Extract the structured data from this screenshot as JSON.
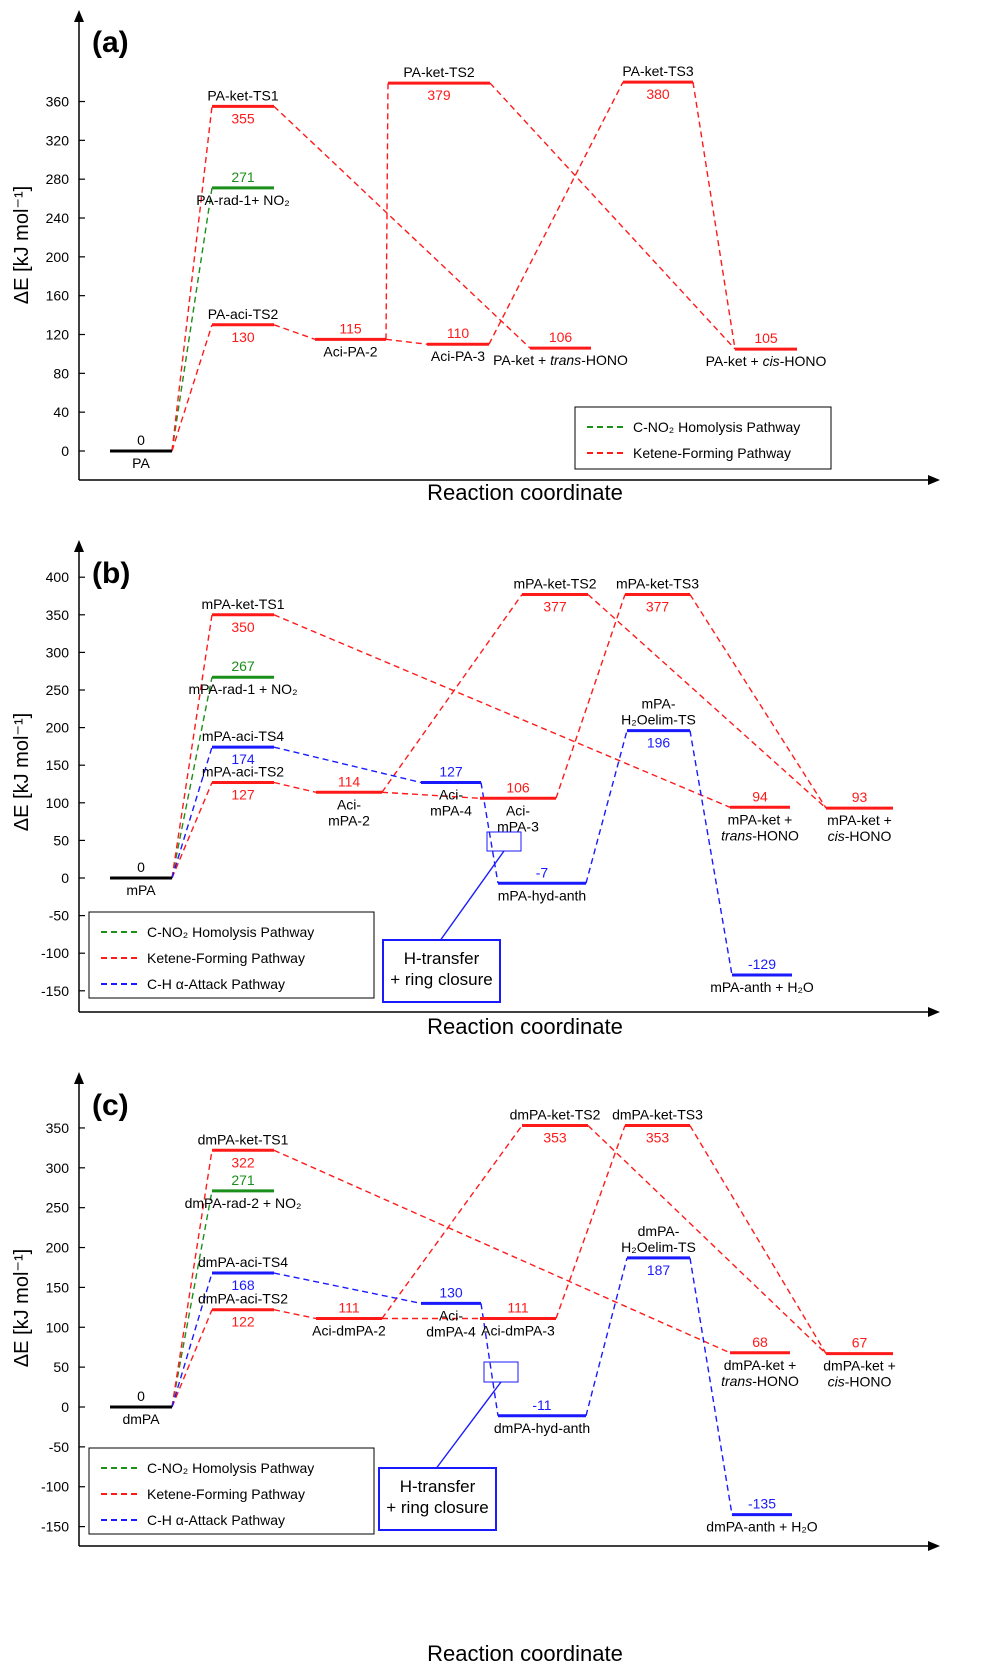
{
  "colors": {
    "black": "#000000",
    "green": "#1a8f1a",
    "red": "#ff1a1a",
    "blue": "#1a1aff"
  },
  "chart_data": [
    {
      "id": "a",
      "type": "energy-profile",
      "panel_label": "(a)",
      "ylabel": "ΔE [kJ mol⁻¹]",
      "xlabel": "Reaction coordinate",
      "yticks": [
        0,
        40,
        80,
        120,
        160,
        200,
        240,
        280,
        320,
        360
      ],
      "ylim": [
        -10,
        410
      ],
      "legend": [
        {
          "label": "C-NO₂ Homolysis Pathway",
          "color": "green"
        },
        {
          "label": "Ketene-Forming Pathway",
          "color": "red"
        }
      ],
      "levels": [
        {
          "id": "PA",
          "value": 0,
          "value_label": "0",
          "name": "PA",
          "color": "black"
        },
        {
          "id": "rad",
          "value": 271,
          "value_label": "271",
          "name": "PA-rad-1+ NO₂",
          "color": "green"
        },
        {
          "id": "ts1",
          "value": 355,
          "value_label": "355",
          "name": "PA-ket-TS1",
          "color": "red"
        },
        {
          "id": "aciTS2",
          "value": 130,
          "value_label": "130",
          "name": "PA-aci-TS2",
          "color": "red"
        },
        {
          "id": "aci2",
          "value": 115,
          "value_label": "115",
          "name": "Aci-PA-2",
          "color": "red"
        },
        {
          "id": "aci3",
          "value": 110,
          "value_label": "110",
          "name": "Aci-PA-3",
          "color": "red"
        },
        {
          "id": "ts2",
          "value": 379,
          "value_label": "379",
          "name": "PA-ket-TS2",
          "color": "red"
        },
        {
          "id": "ketT",
          "value": 106,
          "value_label": "106",
          "name": "PA-ket + trans-HONO",
          "color": "red"
        },
        {
          "id": "ts3",
          "value": 380,
          "value_label": "380",
          "name": "PA-ket-TS3",
          "color": "red"
        },
        {
          "id": "ketC",
          "value": 105,
          "value_label": "105",
          "name": "PA-ket + cis-HONO",
          "color": "red"
        }
      ],
      "connections": [
        {
          "from": "PA",
          "to": "rad",
          "color": "green"
        },
        {
          "from": "PA",
          "to": "ts1",
          "color": "red"
        },
        {
          "from": "PA",
          "to": "aciTS2",
          "color": "red"
        },
        {
          "from": "ts1",
          "to": "ketT",
          "color": "red"
        },
        {
          "from": "aciTS2",
          "to": "aci2",
          "color": "red"
        },
        {
          "from": "aci2",
          "to": "aci3",
          "color": "red"
        },
        {
          "from": "aci2",
          "to": "ts2",
          "color": "red"
        },
        {
          "from": "ts2",
          "to": "ketC",
          "color": "red"
        },
        {
          "from": "aci3",
          "to": "ts3",
          "color": "red"
        },
        {
          "from": "ts3",
          "to": "ketC",
          "color": "red"
        }
      ]
    },
    {
      "id": "b",
      "type": "energy-profile",
      "panel_label": "(b)",
      "ylabel": "ΔE [kJ mol⁻¹]",
      "xlabel": "Reaction coordinate",
      "yticks": [
        -150,
        -100,
        -50,
        0,
        50,
        100,
        150,
        200,
        250,
        300,
        350,
        400
      ],
      "ylim": [
        -170,
        430
      ],
      "legend": [
        {
          "label": "C-NO₂ Homolysis Pathway",
          "color": "green"
        },
        {
          "label": "Ketene-Forming Pathway",
          "color": "red"
        },
        {
          "label": "C-H α-Attack Pathway",
          "color": "blue"
        }
      ],
      "callout": "H-transfer\n+ ring closure",
      "levels": [
        {
          "id": "PA",
          "value": 0,
          "value_label": "0",
          "name": "mPA",
          "color": "black"
        },
        {
          "id": "ts1",
          "value": 350,
          "value_label": "350",
          "name": "mPA-ket-TS1",
          "color": "red"
        },
        {
          "id": "rad",
          "value": 267,
          "value_label": "267",
          "name": "mPA-rad-1 + NO₂",
          "color": "green"
        },
        {
          "id": "aciTS4",
          "value": 174,
          "value_label": "174",
          "name": "mPA-aci-TS4",
          "color": "blue"
        },
        {
          "id": "aciTS2",
          "value": 127,
          "value_label": "127",
          "name": "mPA-aci-TS2",
          "color": "red"
        },
        {
          "id": "aci2",
          "value": 114,
          "value_label": "114",
          "name": "Aci-\nmPA-2",
          "color": "red"
        },
        {
          "id": "aci4",
          "value": 127,
          "value_label": "127",
          "name": "Aci-\nmPA-4",
          "color": "blue"
        },
        {
          "id": "aci3",
          "value": 106,
          "value_label": "106",
          "name": "Aci-\nmPA-3",
          "color": "red"
        },
        {
          "id": "ts2",
          "value": 377,
          "value_label": "377",
          "name": "mPA-ket-TS2",
          "color": "red"
        },
        {
          "id": "hyd",
          "value": -7,
          "value_label": "-7",
          "name": "mPA-hyd-anth",
          "color": "blue"
        },
        {
          "id": "ts3",
          "value": 377,
          "value_label": "377",
          "name": "mPA-ket-TS3",
          "color": "red"
        },
        {
          "id": "h2o",
          "value": 196,
          "value_label": "196",
          "name": "mPA-\nH₂Oelim-TS",
          "color": "blue"
        },
        {
          "id": "ketT",
          "value": 94,
          "value_label": "94",
          "name": "mPA-ket +\ntrans-HONO",
          "color": "red"
        },
        {
          "id": "anth",
          "value": -129,
          "value_label": "-129",
          "name": "mPA-anth + H₂O",
          "color": "blue"
        },
        {
          "id": "ketC",
          "value": 93,
          "value_label": "93",
          "name": "mPA-ket +\ncis-HONO",
          "color": "red"
        }
      ],
      "connections": [
        {
          "from": "PA",
          "to": "rad",
          "color": "green"
        },
        {
          "from": "PA",
          "to": "ts1",
          "color": "red"
        },
        {
          "from": "PA",
          "to": "aciTS2",
          "color": "red"
        },
        {
          "from": "PA",
          "to": "aciTS4",
          "color": "blue"
        },
        {
          "from": "ts1",
          "to": "ketT",
          "color": "red"
        },
        {
          "from": "aciTS2",
          "to": "aci2",
          "color": "red"
        },
        {
          "from": "aci2",
          "to": "aci3",
          "color": "red"
        },
        {
          "from": "aci2",
          "to": "ts2",
          "color": "red"
        },
        {
          "from": "ts2",
          "to": "ketC",
          "color": "red"
        },
        {
          "from": "aci3",
          "to": "ts3",
          "color": "red"
        },
        {
          "from": "ts3",
          "to": "ketC",
          "color": "red"
        },
        {
          "from": "aciTS4",
          "to": "aci4",
          "color": "blue"
        },
        {
          "from": "aci4",
          "to": "hyd",
          "color": "blue"
        },
        {
          "from": "hyd",
          "to": "h2o",
          "color": "blue"
        },
        {
          "from": "h2o",
          "to": "anth",
          "color": "blue"
        }
      ]
    },
    {
      "id": "c",
      "type": "energy-profile",
      "panel_label": "(c)",
      "ylabel": "ΔE [kJ mol⁻¹]",
      "xlabel": "Reaction coordinate",
      "yticks": [
        -150,
        -100,
        -50,
        0,
        50,
        100,
        150,
        200,
        250,
        300,
        350
      ],
      "ylim": [
        -170,
        390
      ],
      "legend": [
        {
          "label": "C-NO₂ Homolysis Pathway",
          "color": "green"
        },
        {
          "label": "Ketene-Forming Pathway",
          "color": "red"
        },
        {
          "label": "C-H α-Attack Pathway",
          "color": "blue"
        }
      ],
      "callout": "H-transfer\n+ ring closure",
      "levels": [
        {
          "id": "PA",
          "value": 0,
          "value_label": "0",
          "name": "dmPA",
          "color": "black"
        },
        {
          "id": "ts1",
          "value": 322,
          "value_label": "322",
          "name": "dmPA-ket-TS1",
          "color": "red"
        },
        {
          "id": "rad",
          "value": 271,
          "value_label": "271",
          "name": "dmPA-rad-2 + NO₂",
          "color": "green"
        },
        {
          "id": "aciTS4",
          "value": 168,
          "value_label": "168",
          "name": "dmPA-aci-TS4",
          "color": "blue"
        },
        {
          "id": "aciTS2",
          "value": 122,
          "value_label": "122",
          "name": "dmPA-aci-TS2",
          "color": "red"
        },
        {
          "id": "aci2",
          "value": 111,
          "value_label": "111",
          "name": "Aci-dmPA-2",
          "color": "red"
        },
        {
          "id": "aci4",
          "value": 130,
          "value_label": "130",
          "name": "Aci-\ndmPA-4",
          "color": "blue"
        },
        {
          "id": "aci3",
          "value": 111,
          "value_label": "111",
          "name": "Aci-dmPA-3",
          "color": "red"
        },
        {
          "id": "ts2",
          "value": 353,
          "value_label": "353",
          "name": "dmPA-ket-TS2",
          "color": "red"
        },
        {
          "id": "hyd",
          "value": -11,
          "value_label": "-11",
          "name": "dmPA-hyd-anth",
          "color": "blue"
        },
        {
          "id": "ts3",
          "value": 353,
          "value_label": "353",
          "name": "dmPA-ket-TS3",
          "color": "red"
        },
        {
          "id": "h2o",
          "value": 187,
          "value_label": "187",
          "name": "dmPA-\nH₂Oelim-TS",
          "color": "blue"
        },
        {
          "id": "ketT",
          "value": 68,
          "value_label": "68",
          "name": "dmPA-ket +\ntrans-HONO",
          "color": "red"
        },
        {
          "id": "anth",
          "value": -135,
          "value_label": "-135",
          "name": "dmPA-anth + H₂O",
          "color": "blue"
        },
        {
          "id": "ketC",
          "value": 67,
          "value_label": "67",
          "name": "dmPA-ket +\ncis-HONO",
          "color": "red"
        }
      ],
      "connections": [
        {
          "from": "PA",
          "to": "rad",
          "color": "green"
        },
        {
          "from": "PA",
          "to": "ts1",
          "color": "red"
        },
        {
          "from": "PA",
          "to": "aciTS2",
          "color": "red"
        },
        {
          "from": "PA",
          "to": "aciTS4",
          "color": "blue"
        },
        {
          "from": "ts1",
          "to": "ketT",
          "color": "red"
        },
        {
          "from": "aciTS2",
          "to": "aci2",
          "color": "red"
        },
        {
          "from": "aci2",
          "to": "aci3",
          "color": "red"
        },
        {
          "from": "aci2",
          "to": "ts2",
          "color": "red"
        },
        {
          "from": "ts2",
          "to": "ketC",
          "color": "red"
        },
        {
          "from": "aci3",
          "to": "ts3",
          "color": "red"
        },
        {
          "from": "ts3",
          "to": "ketC",
          "color": "red"
        },
        {
          "from": "aciTS4",
          "to": "aci4",
          "color": "blue"
        },
        {
          "from": "aci4",
          "to": "hyd",
          "color": "blue"
        },
        {
          "from": "hyd",
          "to": "h2o",
          "color": "blue"
        },
        {
          "from": "h2o",
          "to": "anth",
          "color": "blue"
        }
      ]
    }
  ]
}
